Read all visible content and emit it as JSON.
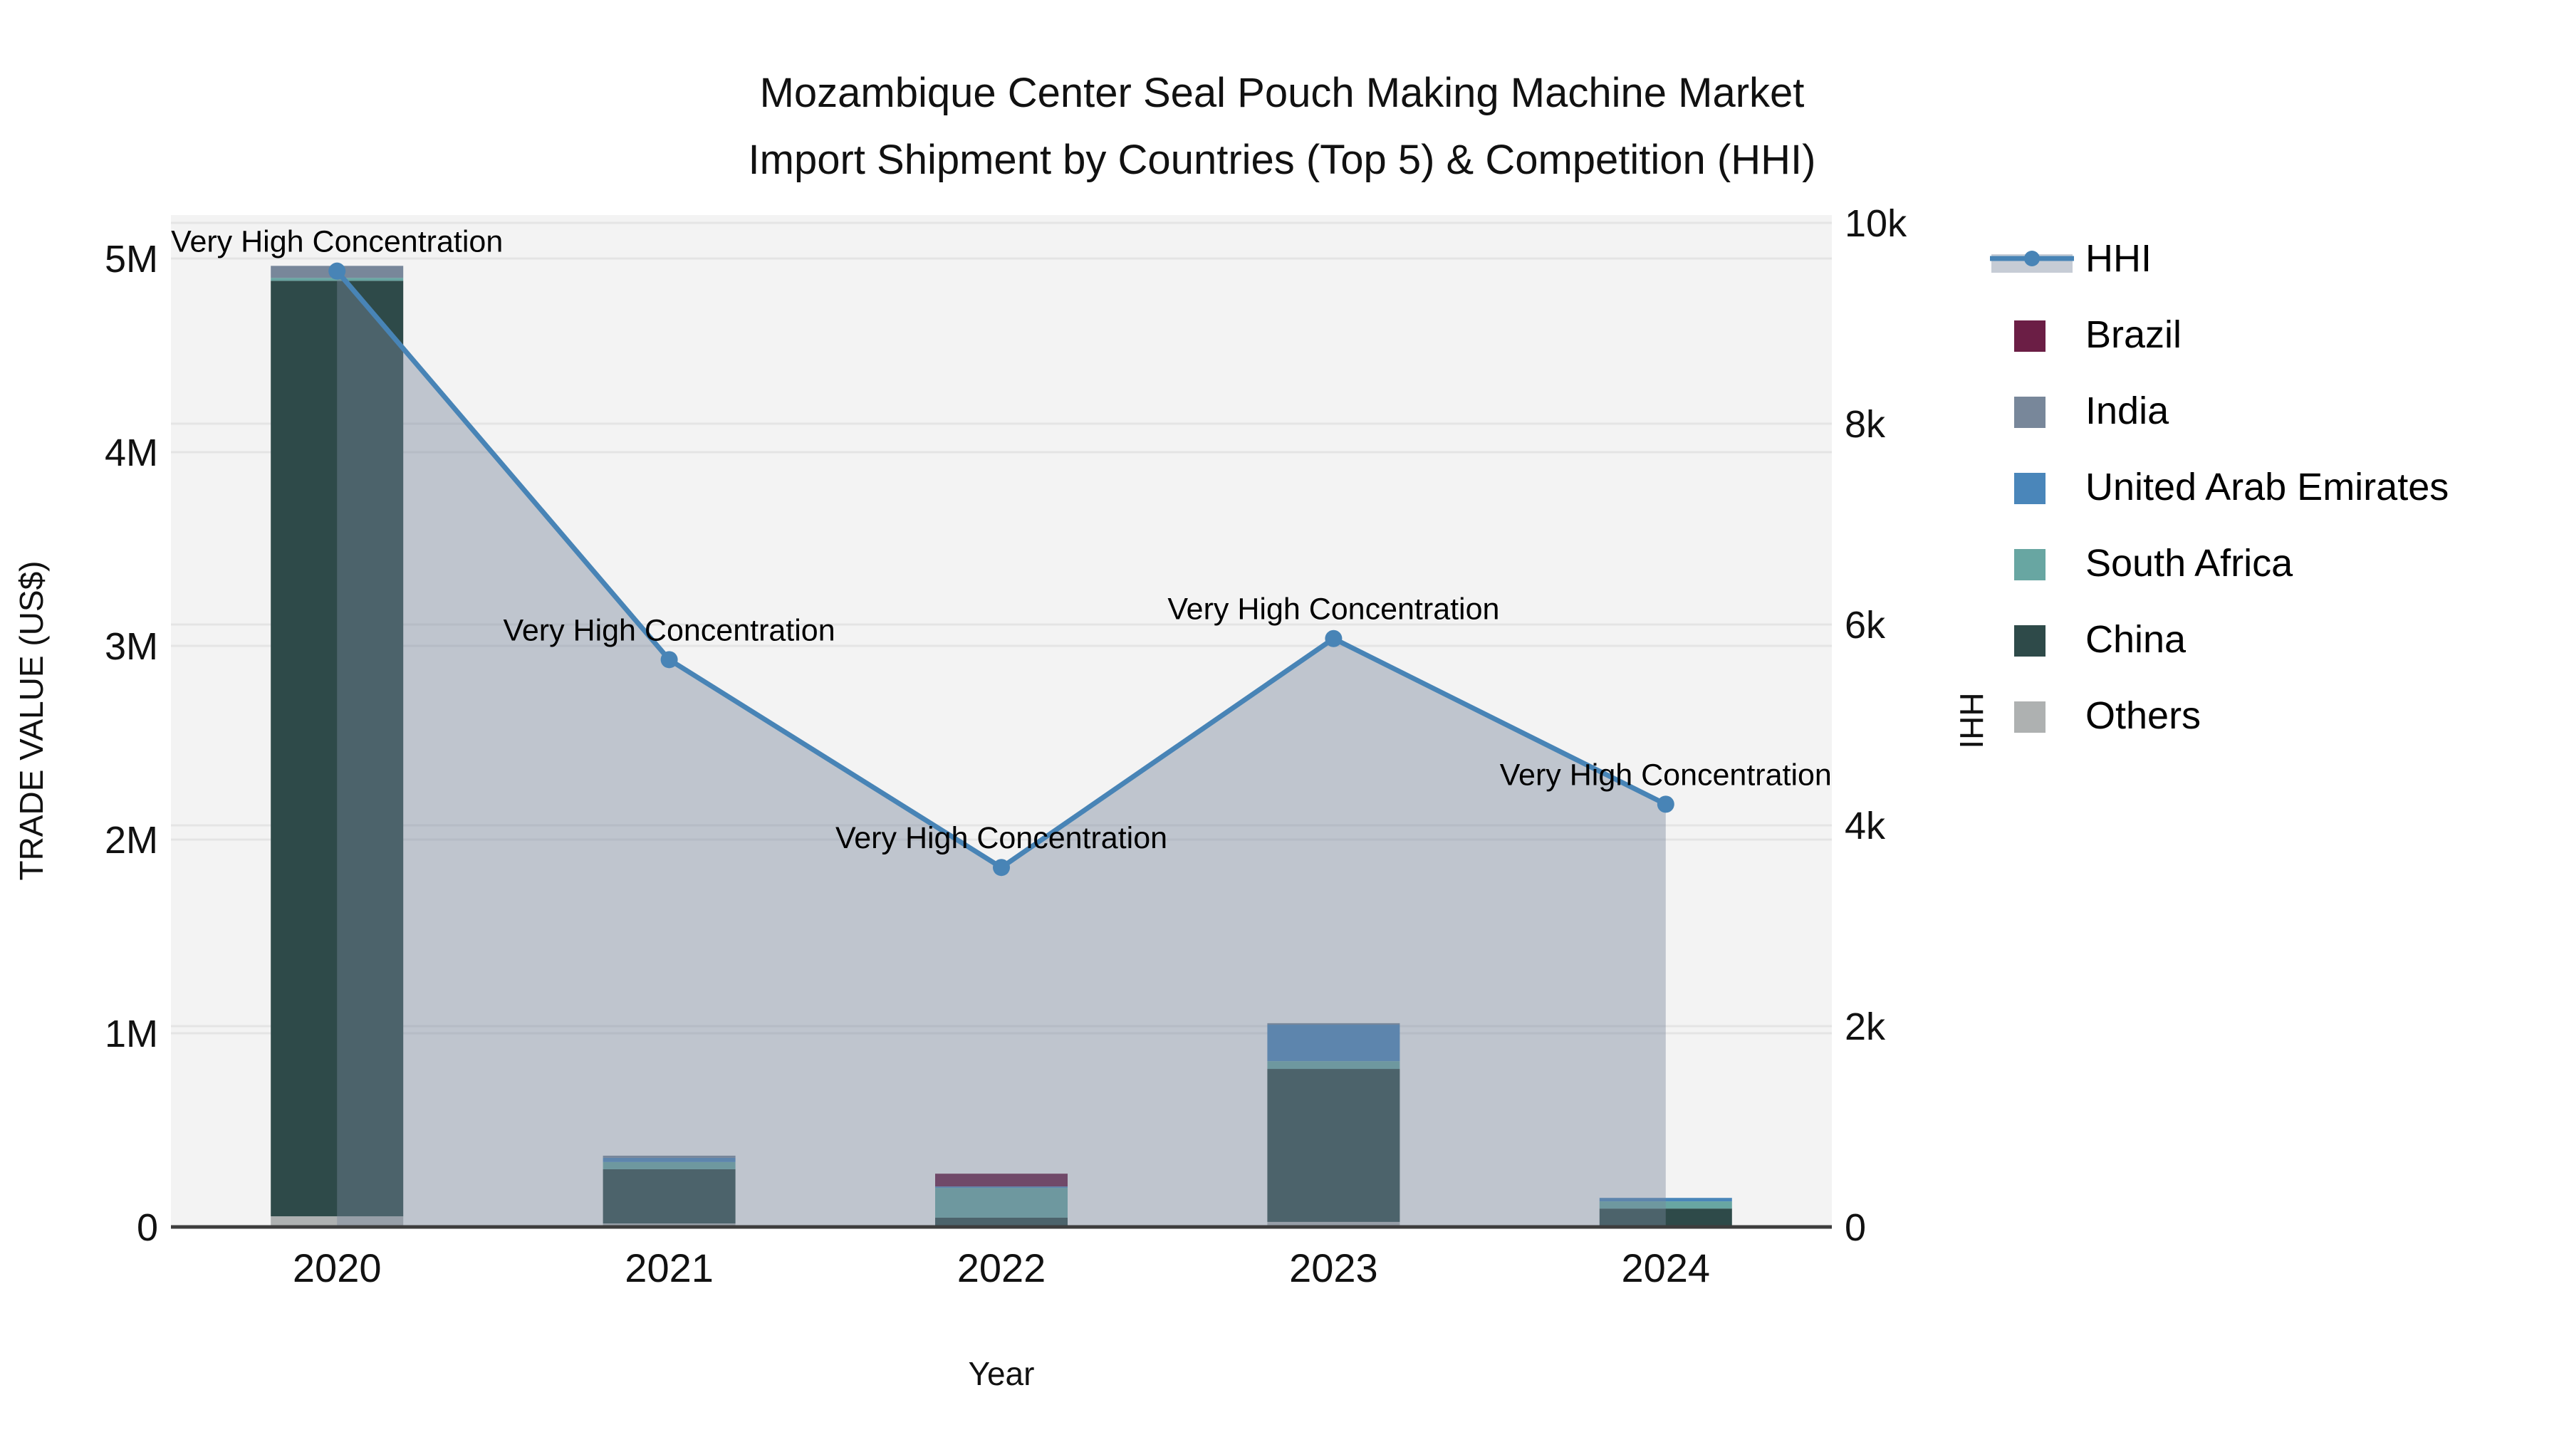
{
  "chart_data": {
    "type": "bar+line",
    "title_line1": "Mozambique Center Seal Pouch Making Machine Market",
    "title_line2": "Import Shipment by Countries (Top 5) & Competition (HHI)",
    "categories": [
      "2020",
      "2021",
      "2022",
      "2023",
      "2024"
    ],
    "x_axis": {
      "title": "Year"
    },
    "left_axis": {
      "title": "TRADE VALUE (US$)",
      "tick_labels": [
        "0",
        "1M",
        "2M",
        "3M",
        "4M",
        "5M"
      ],
      "tick_values": [
        0,
        1000000,
        2000000,
        3000000,
        4000000,
        5000000
      ],
      "units": "US$"
    },
    "right_axis": {
      "title": "HHI",
      "tick_labels": [
        "0",
        "2k",
        "4k",
        "6k",
        "8k",
        "10k"
      ],
      "tick_values": [
        0,
        2000,
        4000,
        6000,
        8000,
        10000
      ]
    },
    "bar_series": [
      {
        "name": "Others",
        "color": "#aeb1b1",
        "values": [
          55000,
          18000,
          0,
          26000,
          3000
        ]
      },
      {
        "name": "China",
        "color": "#2e4a49",
        "values": [
          4830000,
          280000,
          48000,
          790000,
          92000
        ]
      },
      {
        "name": "South Africa",
        "color": "#68a6a2",
        "values": [
          15000,
          37000,
          154000,
          40000,
          37000
        ]
      },
      {
        "name": "United Arab Emirates",
        "color": "#4a86ba",
        "values": [
          0,
          22000,
          7000,
          188000,
          18000
        ]
      },
      {
        "name": "India",
        "color": "#78879a",
        "values": [
          62000,
          11000,
          0,
          8000,
          0
        ]
      },
      {
        "name": "Brazil",
        "color": "#6b1e45",
        "values": [
          0,
          0,
          66000,
          0,
          0
        ]
      }
    ],
    "hhi_line": {
      "name": "HHI",
      "values": [
        9520,
        5650,
        3580,
        5860,
        4210
      ],
      "color": "#4884b6",
      "area_fill": "rgba(120,134,155,0.42)"
    },
    "annotations": [
      {
        "category": "2020",
        "text": "Very High Concentration"
      },
      {
        "category": "2021",
        "text": "Very High Concentration"
      },
      {
        "category": "2022",
        "text": "Very High Concentration"
      },
      {
        "category": "2023",
        "text": "Very High Concentration"
      },
      {
        "category": "2024",
        "text": "Very High Concentration"
      }
    ],
    "legend": {
      "items": [
        {
          "label": "HHI",
          "type": "line-marker",
          "color": "#4884b6"
        },
        {
          "label": "Brazil",
          "type": "swatch",
          "color": "#6b1e45"
        },
        {
          "label": "India",
          "type": "swatch",
          "color": "#78879a"
        },
        {
          "label": "United Arab Emirates",
          "type": "swatch",
          "color": "#4a86ba"
        },
        {
          "label": "South Africa",
          "type": "swatch",
          "color": "#68a6a2"
        },
        {
          "label": "China",
          "type": "swatch",
          "color": "#2e4a49"
        },
        {
          "label": "Others",
          "type": "swatch",
          "color": "#aeb1b1"
        }
      ]
    },
    "colors": {
      "plot_bg": "#f3f3f3",
      "grid": "#e4e4e4",
      "axis_line": "#3d3d3d"
    }
  }
}
